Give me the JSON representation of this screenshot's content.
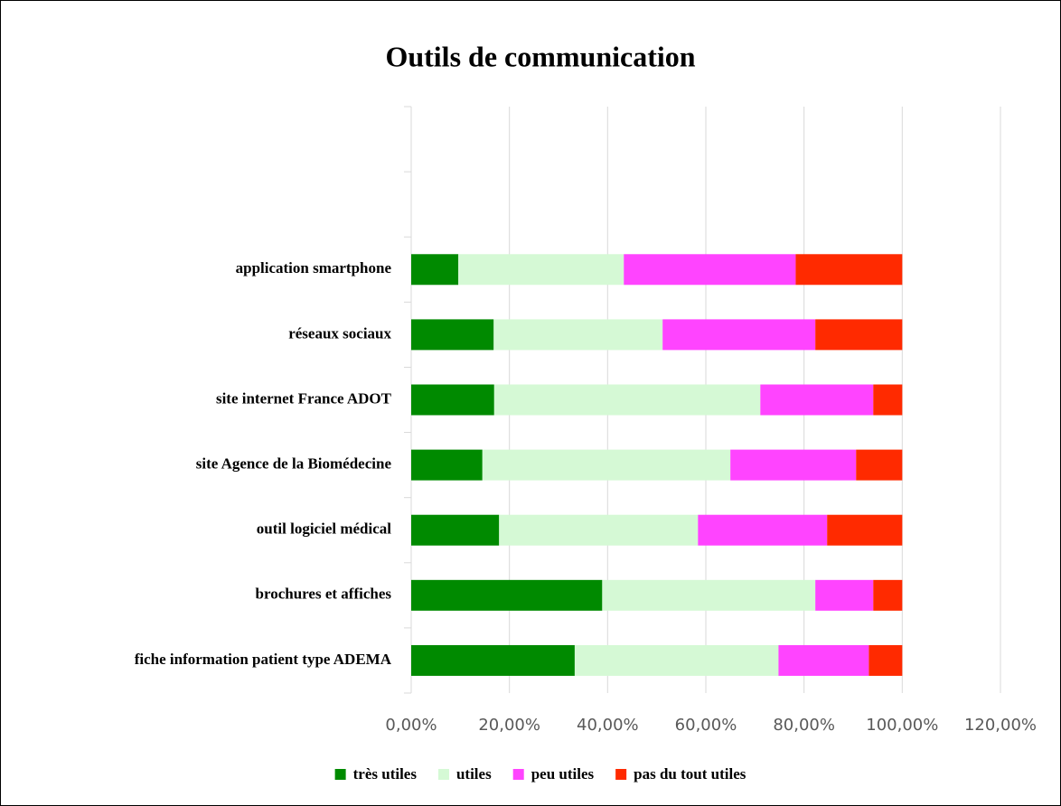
{
  "chart_data": {
    "type": "stacked_bar_horizontal",
    "title": "Outils de communication",
    "categories": [
      "fiche information patient type ADEMA",
      "brochures et affiches",
      "outil logiciel médical",
      "site Agence de la Biomédecine",
      "site internet France ADOT",
      "réseaux sociaux",
      "application smartphone",
      null,
      null
    ],
    "series": [
      {
        "name": "très utiles",
        "color": "#008a00",
        "values": [
          33.3,
          38.9,
          17.9,
          14.5,
          16.9,
          16.8,
          9.6,
          null,
          null
        ]
      },
      {
        "name": "utiles",
        "color": "#d5f9d5",
        "values": [
          41.5,
          43.4,
          40.5,
          50.5,
          54.2,
          34.4,
          33.7,
          null,
          null
        ]
      },
      {
        "name": "peu utiles",
        "color": "#ff44ff",
        "values": [
          18.4,
          11.8,
          26.3,
          25.6,
          23.0,
          31.1,
          35.0,
          null,
          null
        ]
      },
      {
        "name": "pas du tout utiles",
        "color": "#ff2a00",
        "values": [
          6.8,
          5.9,
          15.3,
          9.4,
          5.9,
          17.7,
          21.7,
          null,
          null
        ]
      }
    ],
    "xlim": [
      0,
      120
    ],
    "xticks": [
      {
        "value": 0,
        "label": "0,00%"
      },
      {
        "value": 20,
        "label": "20,00%"
      },
      {
        "value": 40,
        "label": "40,00%"
      },
      {
        "value": 60,
        "label": "60,00%"
      },
      {
        "value": 80,
        "label": "80,00%"
      },
      {
        "value": 100,
        "label": "100,00%"
      },
      {
        "value": 120,
        "label": "120,00%"
      }
    ],
    "grid": true,
    "legend": "bottom"
  }
}
